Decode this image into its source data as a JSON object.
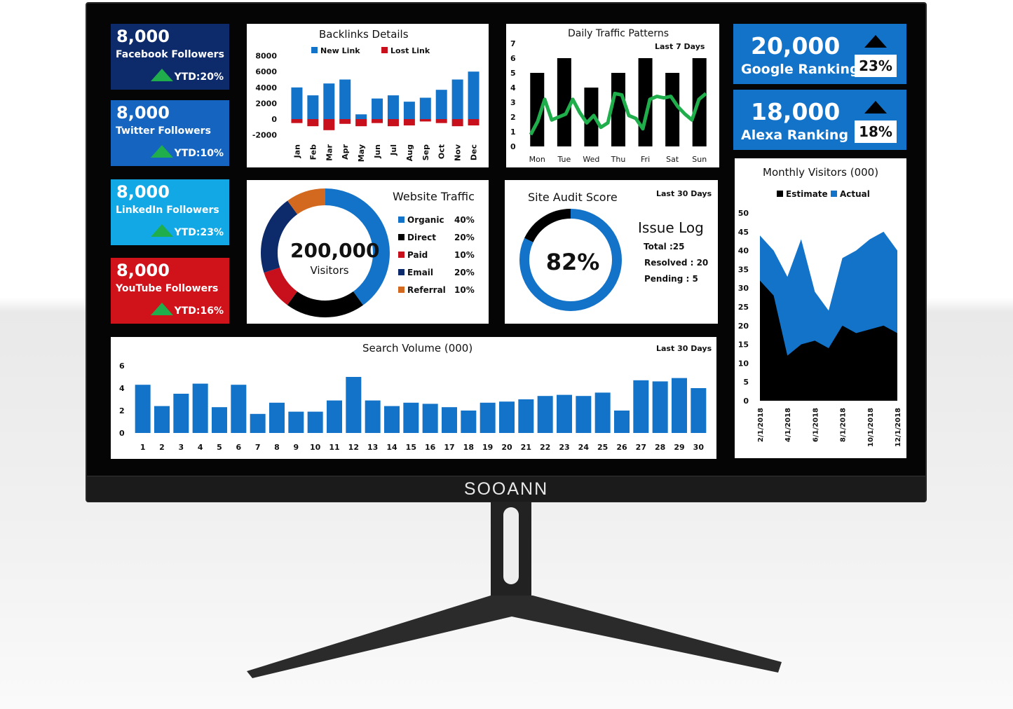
{
  "brand": "SOOANN",
  "tiles": [
    {
      "value": "8,000",
      "label": "Facebook Followers",
      "ytd": "YTD:20%",
      "color": "#0d2a6b"
    },
    {
      "value": "8,000",
      "label": "Twitter Followers",
      "ytd": "YTD:10%",
      "color": "#1565c0"
    },
    {
      "value": "8,000",
      "label": "LinkedIn Followers",
      "ytd": "YTD:23%",
      "color": "#12a8e6"
    },
    {
      "value": "8,000",
      "label": "YouTube Followers",
      "ytd": "YTD:16%",
      "color": "#d0121b"
    }
  ],
  "kpis": [
    {
      "value": "20,000",
      "label": "Google Ranking",
      "pct": "23%"
    },
    {
      "value": "18,000",
      "label": "Alexa Ranking",
      "pct": "18%"
    }
  ],
  "colors": {
    "blue": "#1273c9",
    "red": "#c8101c",
    "green": "#1fae4b",
    "navy": "#0d2a6b",
    "orange": "#d2691e",
    "black": "#000000"
  },
  "chart_data": [
    {
      "type": "bar",
      "title": "Backlinks Details",
      "categories": [
        "Jan",
        "Feb",
        "Mar",
        "Apr",
        "May",
        "Jun",
        "Jul",
        "Aug",
        "Sep",
        "Oct",
        "Nov",
        "Dec"
      ],
      "series": [
        {
          "name": "New Link",
          "values": [
            4000,
            3000,
            4500,
            5000,
            600,
            2600,
            3000,
            2200,
            2700,
            3700,
            5000,
            6000
          ]
        },
        {
          "name": "Lost Link",
          "values": [
            -500,
            -900,
            -1400,
            -600,
            -900,
            -500,
            -900,
            -800,
            -300,
            -500,
            -900,
            -800
          ]
        }
      ],
      "yticks": [
        "8000",
        "6000",
        "4000",
        "2000",
        "0",
        "-2000"
      ],
      "ylim": [
        -2000,
        8000
      ],
      "legend": "top"
    },
    {
      "type": "bar+line",
      "title": "Daily Traffic Patterns",
      "subtitle": "Last 7 Days",
      "categories": [
        "Mon",
        "Tue",
        "Wed",
        "Thu",
        "Fri",
        "Sat",
        "Sun"
      ],
      "bars": [
        5,
        6,
        4,
        5,
        6,
        5,
        6
      ],
      "line": [
        0.8,
        1.7,
        3.2,
        1.8,
        2.0,
        2.2,
        3.2,
        2.3,
        1.6,
        2.1,
        1.3,
        1.6,
        3.6,
        3.5,
        2.1,
        1.9,
        1.2,
        3.2,
        3.4,
        3.3,
        3.4,
        2.7,
        2.2,
        1.8,
        3.2,
        3.6
      ],
      "yticks": [
        "0",
        "1",
        "2",
        "3",
        "4",
        "5",
        "6",
        "7"
      ],
      "ylim": [
        0,
        7
      ]
    },
    {
      "type": "pie",
      "title": "Website Traffic",
      "center_value": "200,000",
      "center_label": "Visitors",
      "slices": [
        {
          "name": "Organic",
          "pct": "40%",
          "value": 40,
          "color": "#1273c9"
        },
        {
          "name": "Direct",
          "pct": "20%",
          "value": 20,
          "color": "#000000"
        },
        {
          "name": "Paid",
          "pct": "10%",
          "value": 10,
          "color": "#c8101c"
        },
        {
          "name": "Email",
          "pct": "20%",
          "value": 20,
          "color": "#0d2a6b"
        },
        {
          "name": "Referral",
          "pct": "10%",
          "value": 10,
          "color": "#d2691e"
        }
      ]
    },
    {
      "type": "pie",
      "title": "Site Audit Score",
      "subtitle": "Last 30 Days",
      "center_value": "82%",
      "score": 82,
      "issue_log": {
        "title": "Issue Log",
        "total": "Total :25",
        "resolved": "Resolved : 20",
        "pending": "Pending : 5"
      }
    },
    {
      "type": "area",
      "title": "Monthly Visitors (000)",
      "x": [
        "2/1/2018",
        "3/1/2018",
        "4/1/2018",
        "5/1/2018",
        "6/1/2018",
        "7/1/2018",
        "8/1/2018",
        "9/1/2018",
        "10/1/2018",
        "11/1/2018",
        "12/1/2018"
      ],
      "xticks": [
        "2/1/2018",
        "4/1/2018",
        "6/1/2018",
        "8/1/2018",
        "10/1/2018",
        "12/1/2018"
      ],
      "series": [
        {
          "name": "Estimate",
          "values": [
            32,
            28,
            12,
            15,
            16,
            14,
            20,
            18,
            19,
            20,
            18
          ]
        },
        {
          "name": "Actual",
          "values": [
            44,
            40,
            33,
            43,
            29,
            24,
            38,
            40,
            43,
            45,
            40
          ]
        }
      ],
      "yticks": [
        "50",
        "45",
        "40",
        "35",
        "30",
        "25",
        "20",
        "15",
        "10",
        "5",
        "0"
      ],
      "ylim": [
        0,
        50
      ],
      "legend": "top"
    },
    {
      "type": "bar",
      "title": "Search Volume (000)",
      "subtitle": "Last 30 Days",
      "categories": [
        "1",
        "2",
        "3",
        "4",
        "5",
        "6",
        "7",
        "8",
        "9",
        "10",
        "11",
        "12",
        "13",
        "14",
        "15",
        "16",
        "17",
        "18",
        "19",
        "20",
        "21",
        "22",
        "23",
        "24",
        "25",
        "26",
        "27",
        "28",
        "29",
        "30"
      ],
      "values": [
        4.3,
        2.4,
        3.5,
        4.4,
        2.3,
        4.3,
        1.7,
        2.7,
        1.9,
        1.9,
        2.9,
        5.0,
        2.9,
        2.4,
        2.7,
        2.6,
        2.3,
        2.0,
        2.7,
        2.8,
        3.0,
        3.3,
        3.4,
        3.3,
        3.6,
        2.0,
        4.7,
        4.6,
        4.9,
        4.0
      ],
      "yticks": [
        "0",
        "2",
        "4",
        "6"
      ],
      "ylim": [
        0,
        6
      ]
    }
  ]
}
